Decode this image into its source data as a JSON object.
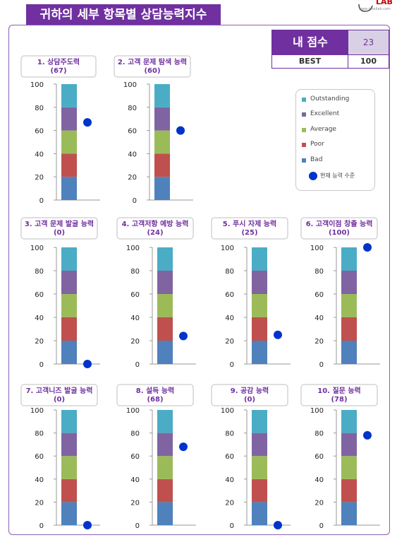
{
  "header": {
    "title": "귀하의 세부 항목별 상담능력지수",
    "logo_text": "LAB",
    "logo_url": "www.insellab.com"
  },
  "score_table": {
    "score_label": "내 점수",
    "score_value": "23",
    "best_label": "BEST",
    "best_value": "100"
  },
  "legend": {
    "items": [
      {
        "label": "Outstanding",
        "color": "#4bacc6"
      },
      {
        "label": "Excellent",
        "color": "#8064a2"
      },
      {
        "label": "Average",
        "color": "#9bbb59"
      },
      {
        "label": "Poor",
        "color": "#c0504d"
      },
      {
        "label": "Bad",
        "color": "#4f81bd"
      }
    ],
    "marker_label": "현재 능력 수준",
    "marker_color": "#0033cc"
  },
  "chart_data": [
    {
      "type": "bar",
      "title": "1. 상담주도력",
      "value_label": "(67)",
      "value": 67,
      "ylim": [
        0,
        100
      ],
      "yticks": [
        "0",
        "20",
        "40",
        "60",
        "80",
        "100"
      ]
    },
    {
      "type": "bar",
      "title": "2. 고객 문제 탐색 능력",
      "value_label": "(60)",
      "value": 60,
      "ylim": [
        0,
        100
      ],
      "yticks": [
        "0",
        "20",
        "40",
        "60",
        "80",
        "100"
      ]
    },
    {
      "type": "bar",
      "title": "3. 고객 문제 발굴 능력",
      "value_label": "(0)",
      "value": 0,
      "ylim": [
        0,
        100
      ],
      "yticks": [
        "0",
        "20",
        "40",
        "60",
        "80",
        "100"
      ]
    },
    {
      "type": "bar",
      "title": "4. 고객저항 예방 능력",
      "value_label": "(24)",
      "value": 24,
      "ylim": [
        0,
        100
      ],
      "yticks": [
        "0",
        "20",
        "40",
        "60",
        "80",
        "100"
      ]
    },
    {
      "type": "bar",
      "title": "5. 푸시 자제 능력",
      "value_label": "(25)",
      "value": 25,
      "ylim": [
        0,
        100
      ],
      "yticks": [
        "0",
        "20",
        "40",
        "60",
        "80",
        "100"
      ]
    },
    {
      "type": "bar",
      "title": "6. 고객이점 창출 능력",
      "value_label": "(100)",
      "value": 100,
      "ylim": [
        0,
        100
      ],
      "yticks": [
        "0",
        "20",
        "40",
        "60",
        "80",
        "100"
      ]
    },
    {
      "type": "bar",
      "title": "7. 고객니즈 발굴 능력",
      "value_label": "(0)",
      "value": 0,
      "ylim": [
        0,
        100
      ],
      "yticks": [
        "0",
        "20",
        "40",
        "60",
        "80",
        "100"
      ]
    },
    {
      "type": "bar",
      "title": "8. 설득 능력",
      "value_label": "(68)",
      "value": 68,
      "ylim": [
        0,
        100
      ],
      "yticks": [
        "0",
        "20",
        "40",
        "60",
        "80",
        "100"
      ]
    },
    {
      "type": "bar",
      "title": "9. 공감 능력",
      "value_label": "(0)",
      "value": 0,
      "ylim": [
        0,
        100
      ],
      "yticks": [
        "0",
        "20",
        "40",
        "60",
        "80",
        "100"
      ]
    },
    {
      "type": "bar",
      "title": "10. 질문 능력",
      "value_label": "(78)",
      "value": 78,
      "ylim": [
        0,
        100
      ],
      "yticks": [
        "0",
        "20",
        "40",
        "60",
        "80",
        "100"
      ]
    }
  ]
}
